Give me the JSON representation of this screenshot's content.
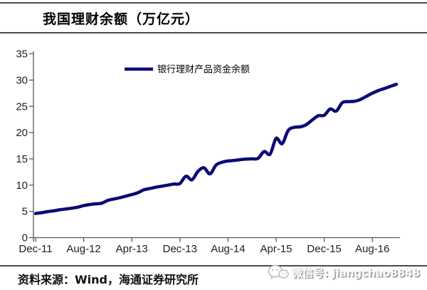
{
  "colors": {
    "line": "#0b0b75",
    "axis": "#595959",
    "rule": "#4a4a4a",
    "tick_text": "#1f1f1f"
  },
  "footer": {
    "source": "资料来源：Wind，海通证券研究所"
  },
  "watermark": {
    "text": "微信号: jiangchao8848",
    "icon": "wechat-icon"
  },
  "chart_data": {
    "type": "line",
    "title": "我国理财余额（万亿元）",
    "x": [
      "Dec-11",
      "Jan-12",
      "Feb-12",
      "Mar-12",
      "Apr-12",
      "May-12",
      "Jun-12",
      "Jul-12",
      "Aug-12",
      "Sep-12",
      "Oct-12",
      "Nov-12",
      "Dec-12",
      "Jan-13",
      "Feb-13",
      "Mar-13",
      "Apr-13",
      "May-13",
      "Jun-13",
      "Jul-13",
      "Aug-13",
      "Sep-13",
      "Oct-13",
      "Nov-13",
      "Dec-13",
      "Jan-14",
      "Feb-14",
      "Mar-14",
      "Apr-14",
      "May-14",
      "Jun-14",
      "Jul-14",
      "Aug-14",
      "Sep-14",
      "Oct-14",
      "Nov-14",
      "Dec-14",
      "Jan-15",
      "Feb-15",
      "Mar-15",
      "Apr-15",
      "May-15",
      "Jun-15",
      "Jul-15",
      "Aug-15",
      "Sep-15",
      "Oct-15",
      "Nov-15",
      "Dec-15",
      "Jan-16",
      "Feb-16",
      "Mar-16",
      "Apr-16",
      "May-16",
      "Jun-16",
      "Jul-16",
      "Aug-16",
      "Sep-16",
      "Oct-16",
      "Nov-16",
      "Dec-16"
    ],
    "series": [
      {
        "name": "银行理财产品资金余额",
        "values": [
          4.6,
          4.75,
          4.95,
          5.1,
          5.3,
          5.45,
          5.6,
          5.8,
          6.1,
          6.3,
          6.45,
          6.55,
          7.1,
          7.35,
          7.6,
          7.9,
          8.2,
          8.55,
          9.1,
          9.35,
          9.6,
          9.8,
          10.0,
          10.2,
          10.3,
          11.7,
          11.0,
          12.6,
          13.3,
          12.15,
          13.8,
          14.35,
          14.6,
          14.7,
          14.85,
          14.95,
          15.0,
          15.1,
          16.4,
          15.9,
          18.9,
          17.9,
          20.4,
          21.0,
          21.1,
          21.5,
          22.4,
          23.2,
          23.3,
          24.5,
          24.1,
          25.7,
          25.9,
          25.95,
          26.3,
          26.9,
          27.5,
          28.0,
          28.4,
          28.8,
          29.2
        ]
      }
    ],
    "x_tick_labels": [
      "Dec-11",
      "Aug-12",
      "Apr-13",
      "Dec-13",
      "Aug-14",
      "Apr-15",
      "Dec-15",
      "Aug-16"
    ],
    "x_tick_every": 8,
    "ylim": [
      0,
      35
    ],
    "ytick_step": 5,
    "grid": false,
    "legend_position": "top-center"
  }
}
